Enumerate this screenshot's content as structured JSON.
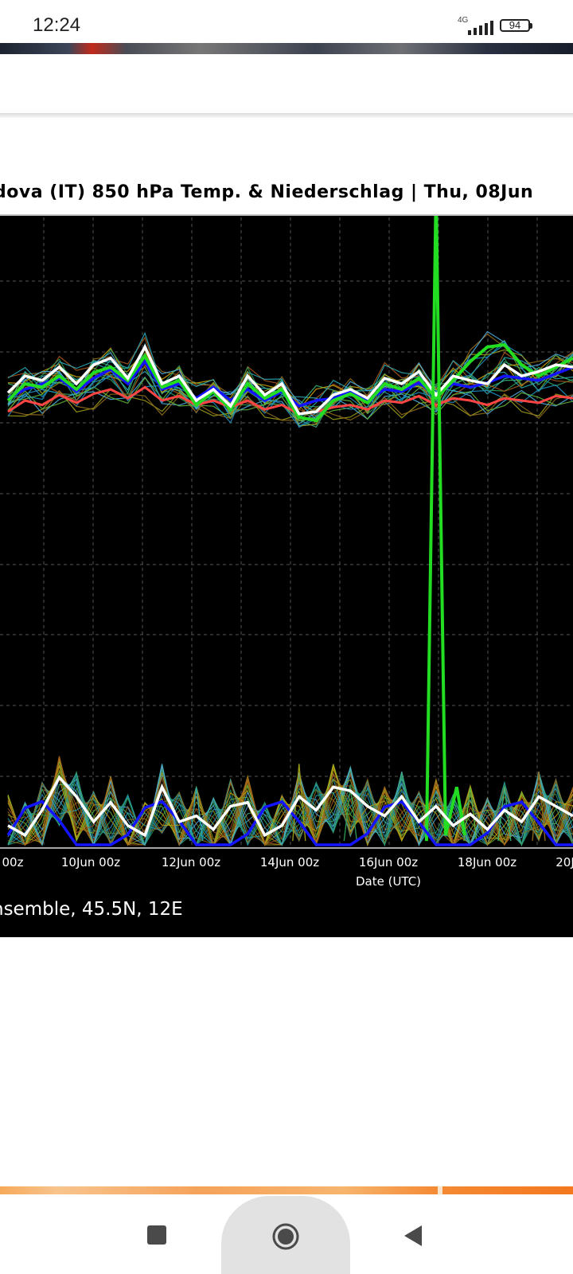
{
  "status_bar": {
    "time": "12:24",
    "network": "4G",
    "battery": "94",
    "icons": [
      "signal-icon",
      "battery-icon"
    ]
  },
  "chart_header": {
    "title": "dova  (IT)  850 hPa Temp. & Niederschlag | Thu, 08Jun"
  },
  "chart_footer": {
    "subtitle": "nsemble, 45.5N, 12E"
  },
  "nav_bar": {
    "buttons": [
      "recent-apps",
      "home",
      "back"
    ]
  },
  "colors": {
    "chart_bg": "#000000",
    "grid": "#555555",
    "mean_line": "#ffffff",
    "control_green": "#22dd22",
    "control_blue": "#1414ff",
    "control_red": "#ff4444",
    "ensemble_palette": [
      "#2aa6b3",
      "#1e8fbf",
      "#3bb27a",
      "#9b9b1a",
      "#c9a10a",
      "#8f6a1c",
      "#2f9a58",
      "#4ca8d8",
      "#a6561b",
      "#5fb23b"
    ],
    "progress": "#f48a35"
  },
  "chart_data": {
    "type": "line",
    "title": "850 hPa Temp. & Niederschlag | Thu, 08Jun",
    "xlabel": "Date (UTC)",
    "ylabel": "",
    "x_tick_labels": [
      "00z",
      "10Jun 00z",
      "12Jun 00z",
      "14Jun 00z",
      "16Jun 00z",
      "18Jun 00z",
      "20J"
    ],
    "x_tick_positions": [
      0,
      8,
      16,
      24,
      32,
      40,
      48
    ],
    "x_range": [
      0,
      48
    ],
    "grid": true,
    "legend": "none",
    "temperature_series": [
      {
        "name": "",
        "values": [
          0.47,
          0.62,
          0.58,
          0.7,
          0.55,
          0.72,
          0.78,
          0.6,
          0.88,
          0.55,
          0.62,
          0.4,
          0.5,
          0.35,
          0.62,
          0.45,
          0.55,
          0.28,
          0.3,
          0.45,
          0.5,
          0.42,
          0.6,
          0.55,
          0.66,
          0.45,
          0.62,
          0.58,
          0.55,
          0.72,
          0.62,
          0.66,
          0.72,
          0.7
        ]
      },
      {
        "name": "",
        "values": [
          0.4,
          0.55,
          0.52,
          0.62,
          0.5,
          0.65,
          0.7,
          0.58,
          0.8,
          0.52,
          0.58,
          0.36,
          0.48,
          0.32,
          0.55,
          0.42,
          0.5,
          0.25,
          0.22,
          0.4,
          0.46,
          0.38,
          0.55,
          0.5,
          0.6,
          0.42,
          0.58,
          0.75,
          0.88,
          0.9,
          0.72,
          0.62,
          0.7,
          0.78
        ]
      },
      {
        "name": "",
        "values": [
          0.42,
          0.5,
          0.55,
          0.6,
          0.48,
          0.6,
          0.68,
          0.55,
          0.75,
          0.5,
          0.55,
          0.42,
          0.52,
          0.4,
          0.5,
          0.4,
          0.48,
          0.35,
          0.4,
          0.42,
          0.48,
          0.4,
          0.5,
          0.48,
          0.56,
          0.45,
          0.55,
          0.52,
          0.56,
          0.62,
          0.6,
          0.58,
          0.64,
          0.7
        ]
      },
      {
        "name": "",
        "values": [
          0.3,
          0.4,
          0.36,
          0.45,
          0.38,
          0.46,
          0.5,
          0.42,
          0.52,
          0.4,
          0.44,
          0.36,
          0.4,
          0.34,
          0.4,
          0.32,
          0.36,
          0.28,
          0.3,
          0.34,
          0.36,
          0.32,
          0.4,
          0.38,
          0.44,
          0.36,
          0.42,
          0.4,
          0.36,
          0.42,
          0.4,
          0.38,
          0.44,
          0.42
        ]
      }
    ],
    "precipitation_mean": [
      0.1,
      0.05,
      0.18,
      0.35,
      0.25,
      0.12,
      0.22,
      0.1,
      0.05,
      0.3,
      0.12,
      0.15,
      0.08,
      0.2,
      0.22,
      0.05,
      0.1,
      0.25,
      0.18,
      0.3,
      0.28,
      0.2,
      0.15,
      0.25,
      0.12,
      0.2,
      0.1,
      0.16,
      0.08,
      0.18,
      0.12,
      0.25,
      0.2,
      0.15
    ],
    "precipitation_spikes": [
      {
        "x_index": 11,
        "value": 0.3
      },
      {
        "x_index": 17,
        "value": 0.42
      },
      {
        "x_index": 20,
        "value": 0.3
      },
      {
        "x_index": 27,
        "value": 0.3
      },
      {
        "x_index": 29,
        "value": 0.3
      },
      {
        "x_index": 31,
        "value": 0.38
      }
    ]
  }
}
